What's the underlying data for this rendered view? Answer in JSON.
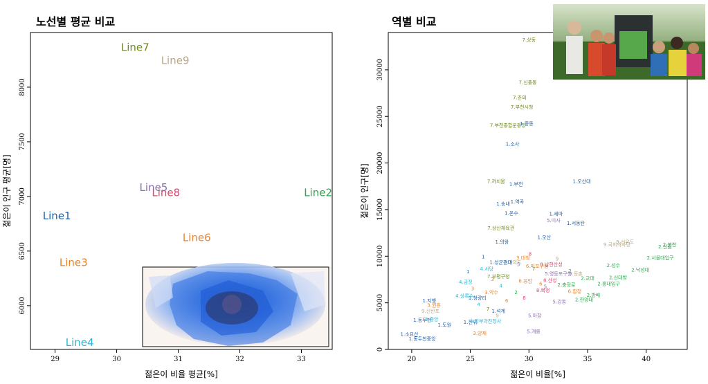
{
  "chart_data": [
    {
      "type": "scatter",
      "title": "노선별 평균 비교",
      "xlabel": "젊은이 비율 평균[%]",
      "ylabel": "젊은이 인구 평균[명]",
      "xlim": [
        28.6,
        33.5
      ],
      "ylim": [
        5600,
        8500
      ],
      "xticks": [
        29,
        30,
        31,
        32,
        33
      ],
      "yticks": [
        6000,
        6500,
        7000,
        7500,
        8000
      ],
      "points": [
        {
          "label": "Line1",
          "x": 28.8,
          "y": 6820,
          "color": "#1f5fa8"
        },
        {
          "label": "Line2",
          "x": 33.5,
          "y": 7030,
          "color": "#2aa64a"
        },
        {
          "label": "Line3",
          "x": 29.3,
          "y": 6390,
          "color": "#e8832a"
        },
        {
          "label": "Line4",
          "x": 29.4,
          "y": 5660,
          "color": "#29b6d8"
        },
        {
          "label": "Line5",
          "x": 30.6,
          "y": 7080,
          "color": "#8e6bb5"
        },
        {
          "label": "Line6",
          "x": 31.3,
          "y": 6620,
          "color": "#e0873a"
        },
        {
          "label": "Line7",
          "x": 30.3,
          "y": 8360,
          "color": "#6b8a1a"
        },
        {
          "label": "Line8",
          "x": 30.8,
          "y": 7030,
          "color": "#d9476e"
        },
        {
          "label": "Line9",
          "x": 30.95,
          "y": 8240,
          "color": "#b9a886"
        }
      ],
      "inset": "map"
    },
    {
      "type": "scatter",
      "title": "역별 비교",
      "xlabel": "젊은이 비율[%]",
      "ylabel": "젊은이 인구[명]",
      "xlim": [
        18,
        43.5
      ],
      "ylim": [
        0,
        34000
      ],
      "xticks": [
        20,
        25,
        30,
        35,
        40
      ],
      "yticks": [
        0,
        5000,
        10000,
        15000,
        20000,
        25000,
        30000
      ],
      "points": [
        {
          "label": "7.상동",
          "x": 30,
          "y": 33200,
          "color": "#6b8a1a"
        },
        {
          "label": "7.신중동",
          "x": 29.9,
          "y": 28600,
          "color": "#6b8a1a"
        },
        {
          "label": "7.춘의",
          "x": 29.2,
          "y": 27000,
          "color": "#6b8a1a"
        },
        {
          "label": "7.부천시청",
          "x": 29.4,
          "y": 26000,
          "color": "#6b8a1a"
        },
        {
          "label": "7.부천종합운동장",
          "x": 28.2,
          "y": 24000,
          "color": "#6b8a1a"
        },
        {
          "label": "1.중동",
          "x": 29.8,
          "y": 24200,
          "color": "#1f5fa8"
        },
        {
          "label": "1.소사",
          "x": 28.6,
          "y": 22000,
          "color": "#1f5fa8"
        },
        {
          "label": "7.까치울",
          "x": 27.2,
          "y": 18000,
          "color": "#6b8a1a"
        },
        {
          "label": "1.부천",
          "x": 28.9,
          "y": 17700,
          "color": "#1f5fa8"
        },
        {
          "label": "1.오산대",
          "x": 34.5,
          "y": 18000,
          "color": "#1f5fa8"
        },
        {
          "label": "1.송내",
          "x": 27.8,
          "y": 15600,
          "color": "#1f5fa8"
        },
        {
          "label": "1.역곡",
          "x": 29,
          "y": 15800,
          "color": "#1f5fa8"
        },
        {
          "label": "1.세마",
          "x": 32.3,
          "y": 14500,
          "color": "#1f5fa8"
        },
        {
          "label": "1.온수",
          "x": 28.5,
          "y": 14600,
          "color": "#1f5fa8"
        },
        {
          "label": "5.미사",
          "x": 32.1,
          "y": 13800,
          "color": "#8e6bb5"
        },
        {
          "label": "1.서동탄",
          "x": 34,
          "y": 13500,
          "color": "#1f5fa8"
        },
        {
          "label": "7.상산체육관",
          "x": 27.6,
          "y": 13000,
          "color": "#6b8a1a"
        },
        {
          "label": "1.오산",
          "x": 31.3,
          "y": 12000,
          "color": "#1f5fa8"
        },
        {
          "label": "1.의왕",
          "x": 27.7,
          "y": 11500,
          "color": "#1f5fa8"
        },
        {
          "label": "9.국회의사당",
          "x": 37.5,
          "y": 11200,
          "color": "#b9a886"
        },
        {
          "label": "9.선유도",
          "x": 38.2,
          "y": 11500,
          "color": "#b9a886"
        },
        {
          "label": "2.신림",
          "x": 41.6,
          "y": 11000,
          "color": "#2aa64a"
        },
        {
          "label": "2.봉천",
          "x": 42,
          "y": 11200,
          "color": "#2aa64a"
        },
        {
          "label": "2.서울대입구",
          "x": 41.2,
          "y": 9800,
          "color": "#2aa64a"
        },
        {
          "label": "2.낙성대",
          "x": 39.5,
          "y": 8500,
          "color": "#2aa64a"
        },
        {
          "label": "2.신대방",
          "x": 37.6,
          "y": 7700,
          "color": "#2aa64a"
        },
        {
          "label": "2.홍대입구",
          "x": 36.8,
          "y": 7000,
          "color": "#2aa64a"
        },
        {
          "label": "2.한양대",
          "x": 34.7,
          "y": 5300,
          "color": "#2aa64a"
        },
        {
          "label": "2.방배",
          "x": 35.5,
          "y": 5800,
          "color": "#2aa64a"
        },
        {
          "label": "1.지행",
          "x": 21.5,
          "y": 5200,
          "color": "#1f5fa8"
        },
        {
          "label": "3.원흥",
          "x": 21.9,
          "y": 4700,
          "color": "#e8832a"
        },
        {
          "label": "9.신반포",
          "x": 21.6,
          "y": 4100,
          "color": "#b9a886"
        },
        {
          "label": "1.동두천",
          "x": 20.9,
          "y": 3100,
          "color": "#1f5fa8"
        },
        {
          "label": "4.중앙",
          "x": 21.7,
          "y": 3200,
          "color": "#29b6d8"
        },
        {
          "label": "1.도원",
          "x": 22.8,
          "y": 2600,
          "color": "#1f5fa8"
        },
        {
          "label": "1.소요산",
          "x": 19.8,
          "y": 1600,
          "color": "#1f5fa8"
        },
        {
          "label": "1.동두천중앙",
          "x": 20.9,
          "y": 1100,
          "color": "#1f5fa8"
        },
        {
          "label": "1.청량리",
          "x": 25.6,
          "y": 5500,
          "color": "#1f5fa8"
        },
        {
          "label": "1.진위",
          "x": 25,
          "y": 2900,
          "color": "#1f5fa8"
        },
        {
          "label": "4.정부과천청사",
          "x": 26.3,
          "y": 3000,
          "color": "#29b6d8"
        },
        {
          "label": "3.양재",
          "x": 25.8,
          "y": 1700,
          "color": "#e8832a"
        },
        {
          "label": "5.개롱",
          "x": 30.4,
          "y": 1900,
          "color": "#8e6bb5"
        },
        {
          "label": "9.여의도",
          "x": 28.6,
          "y": 9300,
          "color": "#b9a886"
        },
        {
          "label": "5.마장",
          "x": 30.5,
          "y": 3600,
          "color": "#8e6bb5"
        },
        {
          "label": "3.대청",
          "x": 29.5,
          "y": 9800,
          "color": "#e8832a"
        },
        {
          "label": "5.영등포구청",
          "x": 32.5,
          "y": 8100,
          "color": "#8e6bb5"
        },
        {
          "label": "2.충정로",
          "x": 33.2,
          "y": 6900,
          "color": "#2aa64a"
        },
        {
          "label": "6.합정",
          "x": 33.9,
          "y": 6200,
          "color": "#e0873a"
        },
        {
          "label": "8.산성",
          "x": 31.8,
          "y": 7400,
          "color": "#d9476e"
        },
        {
          "label": "4.사당",
          "x": 26.4,
          "y": 8600,
          "color": "#29b6d8"
        },
        {
          "label": "6.마포구청",
          "x": 30.7,
          "y": 8900,
          "color": "#e0873a"
        },
        {
          "label": "1.성균관대",
          "x": 27.6,
          "y": 9300,
          "color": "#1f5fa8"
        },
        {
          "label": "8.복정",
          "x": 31.2,
          "y": 6300,
          "color": "#d9476e"
        },
        {
          "label": "4.금정",
          "x": 24.6,
          "y": 7200,
          "color": "#29b6d8"
        },
        {
          "label": "7.부평구청",
          "x": 27.4,
          "y": 7800,
          "color": "#6b8a1a"
        },
        {
          "label": "2.성수",
          "x": 37.2,
          "y": 9000,
          "color": "#2aa64a"
        },
        {
          "label": "8.남한산성",
          "x": 31.9,
          "y": 9100,
          "color": "#d9476e"
        },
        {
          "label": "6.응암",
          "x": 29.7,
          "y": 7300,
          "color": "#e0873a"
        },
        {
          "label": "3.약수",
          "x": 26.8,
          "y": 6100,
          "color": "#e8832a"
        },
        {
          "label": "1.석계",
          "x": 27.4,
          "y": 4100,
          "color": "#1f5fa8"
        },
        {
          "label": "5.강동",
          "x": 32.6,
          "y": 5100,
          "color": "#8e6bb5"
        },
        {
          "label": "9.등촌",
          "x": 34,
          "y": 8100,
          "color": "#b9a886"
        },
        {
          "label": "2.교대",
          "x": 35,
          "y": 7600,
          "color": "#2aa64a"
        },
        {
          "label": "4.상록수",
          "x": 24.5,
          "y": 5700,
          "color": "#29b6d8"
        }
      ],
      "extra_points": [
        {
          "label": "1",
          "x": 24.8,
          "y": 8300,
          "color": "#1f5fa8"
        },
        {
          "label": "2",
          "x": 28.9,
          "y": 6100,
          "color": "#2aa64a"
        },
        {
          "label": "3",
          "x": 26.9,
          "y": 7500,
          "color": "#e8832a"
        },
        {
          "label": "4",
          "x": 25.7,
          "y": 4800,
          "color": "#29b6d8"
        },
        {
          "label": "5",
          "x": 31.4,
          "y": 6700,
          "color": "#8e6bb5"
        },
        {
          "label": "6",
          "x": 28.1,
          "y": 5200,
          "color": "#e0873a"
        },
        {
          "label": "7",
          "x": 30.4,
          "y": 8600,
          "color": "#6b8a1a"
        },
        {
          "label": "8",
          "x": 29.6,
          "y": 5500,
          "color": "#d9476e"
        },
        {
          "label": "9",
          "x": 32.4,
          "y": 9700,
          "color": "#b9a886"
        },
        {
          "label": "1",
          "x": 26.1,
          "y": 9900,
          "color": "#1f5fa8"
        },
        {
          "label": "2",
          "x": 33.5,
          "y": 8400,
          "color": "#2aa64a"
        },
        {
          "label": "3",
          "x": 25.2,
          "y": 6500,
          "color": "#e8832a"
        },
        {
          "label": "4",
          "x": 27.6,
          "y": 6800,
          "color": "#29b6d8"
        },
        {
          "label": "5",
          "x": 29.1,
          "y": 9100,
          "color": "#8e6bb5"
        },
        {
          "label": "6",
          "x": 31,
          "y": 7000,
          "color": "#e0873a"
        },
        {
          "label": "7",
          "x": 26.5,
          "y": 4300,
          "color": "#6b8a1a"
        },
        {
          "label": "8",
          "x": 30.1,
          "y": 10200,
          "color": "#d9476e"
        },
        {
          "label": "9",
          "x": 27.3,
          "y": 3600,
          "color": "#b9a886"
        }
      ],
      "inset": "photo"
    }
  ]
}
